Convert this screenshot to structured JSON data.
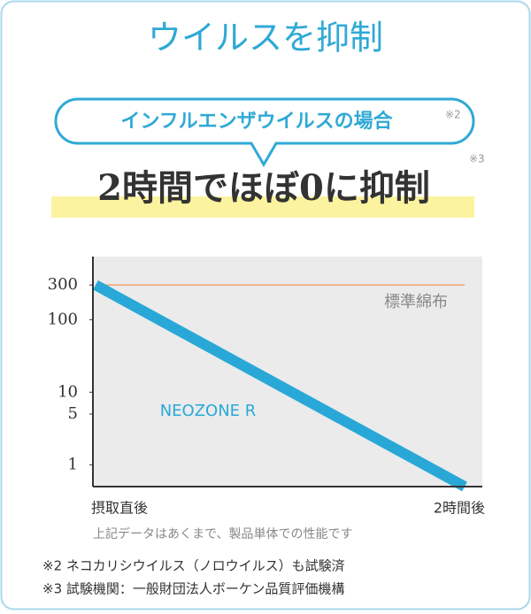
{
  "header": {
    "title": "ウイルスを抑制",
    "bubble": "インフルエンザウイルスの場合",
    "bubble_note": "※2",
    "headline": "2時間でほぼ0に抑制",
    "headline_note": "※3"
  },
  "chart_data": {
    "type": "line",
    "categories": [
      "摂取直後",
      "2時間後"
    ],
    "series": [
      {
        "name": "標準綿布",
        "color": "#f0a070",
        "values": [
          300,
          300
        ]
      },
      {
        "name": "NEOZONE R",
        "color": "#29a8d8",
        "values": [
          300,
          0.5
        ]
      }
    ],
    "log": true,
    "ylim": [
      0.5,
      740
    ],
    "yticks": [
      1,
      5,
      10,
      100,
      300
    ],
    "note": "上記データはあくまで、製品単体での性能です"
  },
  "footnotes": [
    "※2 ネコカリシウイルス（ノロウイルス）も試験済",
    "※3 試験機関：一般財団法人ボーケン品質評価機構"
  ]
}
